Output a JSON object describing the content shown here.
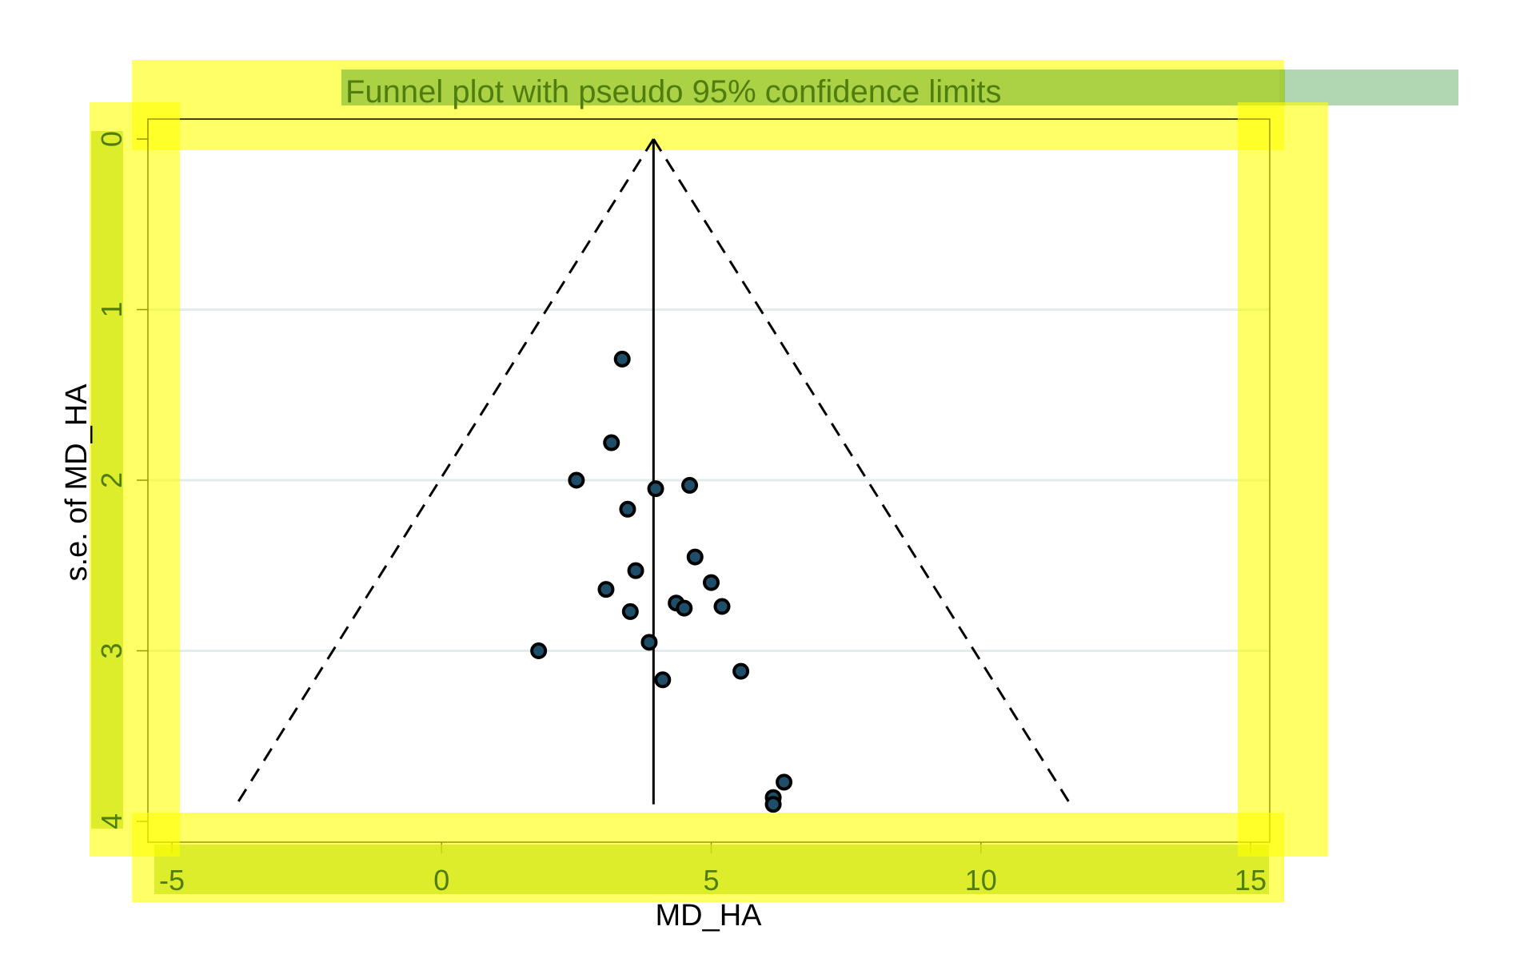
{
  "chart_data": {
    "type": "scatter",
    "title": "Funnel plot with pseudo 95% confidence limits",
    "xlabel": "MD_HA",
    "ylabel": "s.e. of MD_HA",
    "xlim": [
      -5,
      15
    ],
    "ylim": [
      0,
      4
    ],
    "y_reversed": true,
    "xticks": [
      -5,
      0,
      5,
      10,
      15
    ],
    "yticks": [
      0,
      1,
      2,
      3,
      4
    ],
    "grid": "horizontal",
    "pooled_estimate": 3.93,
    "funnel": {
      "apex": [
        3.93,
        0
      ],
      "left_base": [
        -3.8,
        3.9
      ],
      "right_base": [
        11.66,
        3.9
      ],
      "style": "dashed"
    },
    "points": [
      {
        "x": 3.35,
        "y": 1.29
      },
      {
        "x": 3.15,
        "y": 1.78
      },
      {
        "x": 2.5,
        "y": 2.0
      },
      {
        "x": 3.97,
        "y": 2.05
      },
      {
        "x": 4.6,
        "y": 2.03
      },
      {
        "x": 3.45,
        "y": 2.17
      },
      {
        "x": 4.7,
        "y": 2.45
      },
      {
        "x": 3.6,
        "y": 2.53
      },
      {
        "x": 5.0,
        "y": 2.6
      },
      {
        "x": 3.05,
        "y": 2.64
      },
      {
        "x": 4.35,
        "y": 2.72
      },
      {
        "x": 4.5,
        "y": 2.75
      },
      {
        "x": 5.2,
        "y": 2.74
      },
      {
        "x": 3.5,
        "y": 2.77
      },
      {
        "x": 3.85,
        "y": 2.95
      },
      {
        "x": 1.8,
        "y": 3.0
      },
      {
        "x": 5.55,
        "y": 3.12
      },
      {
        "x": 4.1,
        "y": 3.17
      },
      {
        "x": 6.35,
        "y": 3.77
      },
      {
        "x": 6.15,
        "y": 3.86
      },
      {
        "x": 6.15,
        "y": 3.9
      }
    ],
    "colors": {
      "marker_fill": "#1f4e6b",
      "marker_edge": "#000000",
      "grid": "#e2ecec",
      "frame": "#000000",
      "highlight_yellow": "#ffff00",
      "highlight_green": "#8fc33a",
      "highlight_text": "#4f7d0f",
      "title_bar_extension": "#a7d3a8"
    }
  }
}
